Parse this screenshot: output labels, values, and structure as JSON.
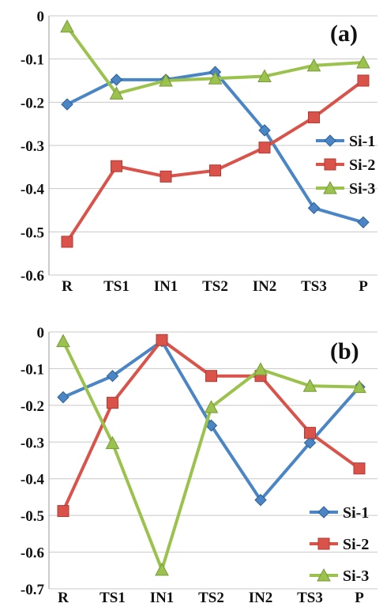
{
  "chart_data": [
    {
      "type": "line",
      "panel_label": "(a)",
      "categories": [
        "R",
        "TS1",
        "IN1",
        "TS2",
        "IN2",
        "TS3",
        "P"
      ],
      "ylim": [
        -0.6,
        0
      ],
      "yticks": [
        "0",
        "-0.1",
        "-0.2",
        "-0.3",
        "-0.4",
        "-0.5",
        "-0.6"
      ],
      "ytick_values": [
        0,
        -0.1,
        -0.2,
        -0.3,
        -0.4,
        -0.5,
        -0.6
      ],
      "grid": "horizontal",
      "legend_position": "right",
      "series": [
        {
          "name": "Si-1",
          "color": "#4a86c5",
          "marker": "diamond",
          "values": [
            -0.205,
            -0.148,
            -0.148,
            -0.13,
            -0.265,
            -0.445,
            -0.478
          ]
        },
        {
          "name": "Si-2",
          "color": "#d9534a",
          "marker": "square",
          "values": [
            -0.523,
            -0.348,
            -0.372,
            -0.358,
            -0.305,
            -0.235,
            -0.15
          ]
        },
        {
          "name": "Si-3",
          "color": "#9bc24c",
          "marker": "triangle",
          "values": [
            -0.025,
            -0.18,
            -0.15,
            -0.145,
            -0.14,
            -0.115,
            -0.108
          ]
        }
      ]
    },
    {
      "type": "line",
      "panel_label": "(b)",
      "categories": [
        "R",
        "TS1",
        "IN1",
        "TS2",
        "IN2",
        "TS3",
        "P"
      ],
      "ylim": [
        -0.7,
        0
      ],
      "yticks": [
        "0",
        "-0.1",
        "-0.2",
        "-0.3",
        "-0.4",
        "-0.5",
        "-0.6",
        "-0.7"
      ],
      "ytick_values": [
        0,
        -0.1,
        -0.2,
        -0.3,
        -0.4,
        -0.5,
        -0.6,
        -0.7
      ],
      "grid": "horizontal",
      "legend_position": "bottom-right",
      "series": [
        {
          "name": "Si-1",
          "color": "#4a86c5",
          "marker": "diamond",
          "values": [
            -0.178,
            -0.12,
            -0.025,
            -0.255,
            -0.458,
            -0.302,
            -0.15
          ]
        },
        {
          "name": "Si-2",
          "color": "#d9534a",
          "marker": "square",
          "values": [
            -0.488,
            -0.193,
            -0.022,
            -0.12,
            -0.12,
            -0.275,
            -0.372
          ]
        },
        {
          "name": "Si-3",
          "color": "#9bc24c",
          "marker": "triangle",
          "values": [
            -0.025,
            -0.303,
            -0.648,
            -0.205,
            -0.102,
            -0.147,
            -0.15
          ]
        }
      ]
    }
  ]
}
